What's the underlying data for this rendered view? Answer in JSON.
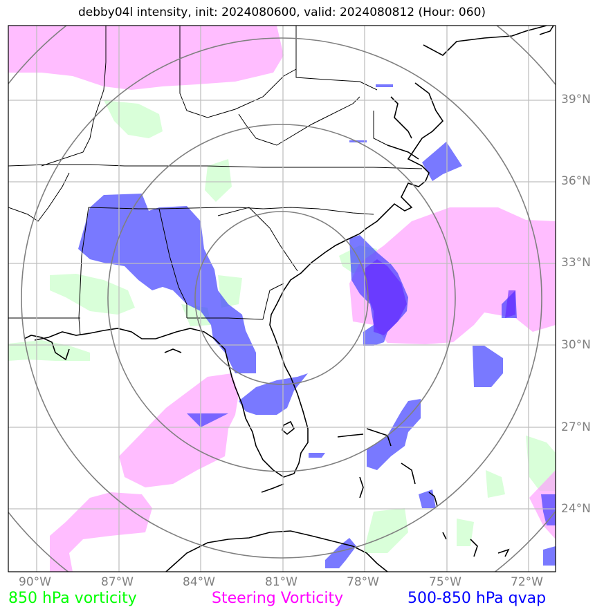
{
  "title": "debby04l intensity, init: 2024080600, valid: 2024080812 (Hour: 060)",
  "lat_labels": [
    "39°N",
    "36°N",
    "33°N",
    "30°N",
    "27°N",
    "24°N"
  ],
  "lon_labels": [
    "90°W",
    "87°W",
    "84°W",
    "81°W",
    "78°W",
    "75°W",
    "72°W"
  ],
  "legend": {
    "green": {
      "label": "850 hPa vorticity",
      "color": "#00ff00"
    },
    "magenta": {
      "label": "Steering Vorticity",
      "color": "#ff00ff"
    },
    "blue": {
      "label": "500-850 hPa qvap",
      "color": "#0000ff"
    }
  },
  "colors": {
    "vort850_fill": "#ccffcc",
    "steering_fill": "#ff99ff",
    "qvap_fill": "#4040ff",
    "grid": "#bfbfbf",
    "range_rings": "#808080",
    "coastline": "#000000"
  },
  "range_rings_count": 4
}
